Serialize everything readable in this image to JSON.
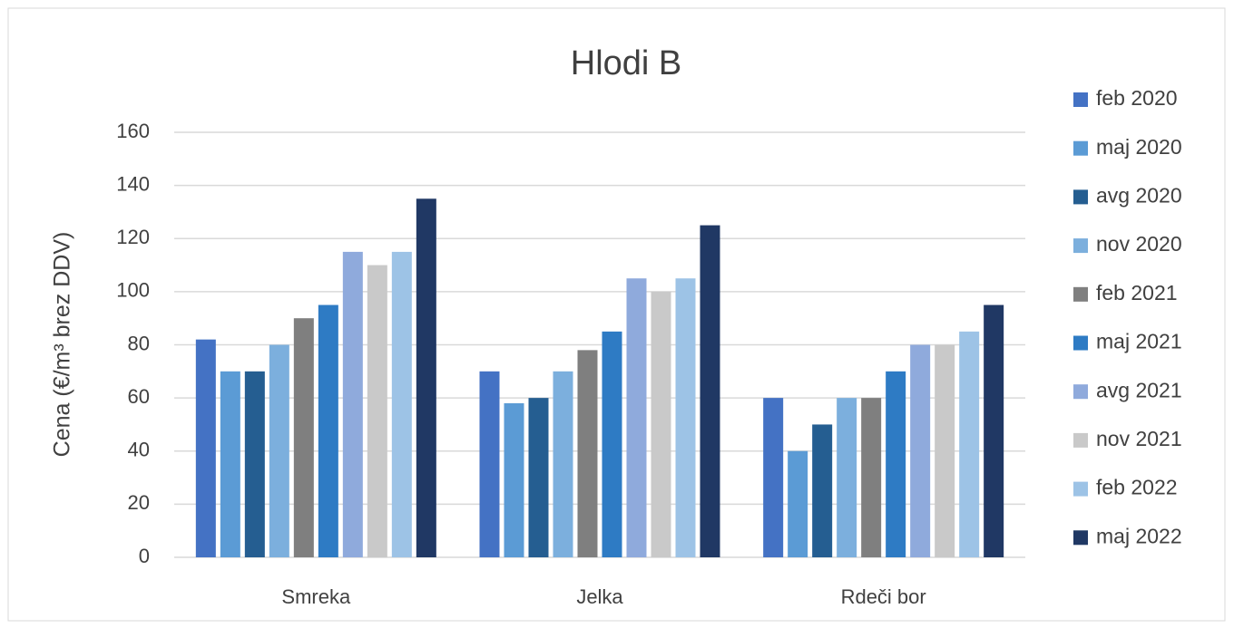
{
  "chart_data": {
    "type": "bar",
    "title": "Hlodi B",
    "y_label": "Cena (€/m³ brez DDV)",
    "categories": [
      "Smreka",
      "Jelka",
      "Rdeči bor"
    ],
    "series": [
      {
        "name": "feb 2020",
        "color": "#4472c4",
        "values": [
          82,
          70,
          60
        ]
      },
      {
        "name": "maj 2020",
        "color": "#5b9bd5",
        "values": [
          70,
          58,
          40
        ]
      },
      {
        "name": "avg 2020",
        "color": "#255e91",
        "values": [
          70,
          60,
          50
        ]
      },
      {
        "name": "nov 2020",
        "color": "#7cafdd",
        "values": [
          80,
          70,
          60
        ]
      },
      {
        "name": "feb 2021",
        "color": "#7f7f7f",
        "values": [
          90,
          78,
          60
        ]
      },
      {
        "name": "maj 2021",
        "color": "#2e7bc4",
        "values": [
          95,
          85,
          70
        ]
      },
      {
        "name": "avg 2021",
        "color": "#8faadc",
        "values": [
          115,
          105,
          80
        ]
      },
      {
        "name": "nov 2021",
        "color": "#c9c9c9",
        "values": [
          110,
          100,
          80
        ]
      },
      {
        "name": "feb 2022",
        "color": "#9dc3e6",
        "values": [
          115,
          105,
          85
        ]
      },
      {
        "name": "maj 2022",
        "color": "#203864",
        "values": [
          135,
          125,
          95
        ]
      }
    ],
    "ylim": [
      0,
      160
    ],
    "yticks": [
      0,
      20,
      40,
      60,
      80,
      100,
      120,
      140,
      160
    ],
    "grid": true,
    "legend": "right"
  }
}
